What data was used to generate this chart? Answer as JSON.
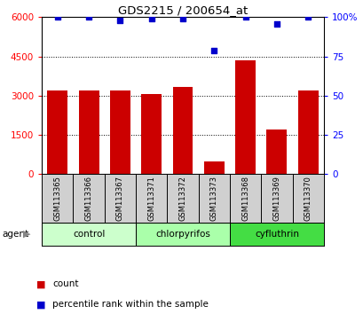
{
  "title": "GDS2215 / 200654_at",
  "samples": [
    "GSM113365",
    "GSM113366",
    "GSM113367",
    "GSM113371",
    "GSM113372",
    "GSM113373",
    "GSM113368",
    "GSM113369",
    "GSM113370"
  ],
  "counts": [
    3200,
    3200,
    3200,
    3050,
    3350,
    500,
    4350,
    1700,
    3200
  ],
  "percentiles": [
    100,
    100,
    98,
    99,
    99,
    79,
    100,
    96,
    100
  ],
  "groups": [
    {
      "label": "control",
      "indices": [
        0,
        1,
        2
      ],
      "color": "#ccffcc"
    },
    {
      "label": "chlorpyrifos",
      "indices": [
        3,
        4,
        5
      ],
      "color": "#aaffaa"
    },
    {
      "label": "cyfluthrin",
      "indices": [
        6,
        7,
        8
      ],
      "color": "#44dd44"
    }
  ],
  "bar_color": "#cc0000",
  "scatter_color": "#0000cc",
  "ylim_left": [
    0,
    6000
  ],
  "ylim_right": [
    0,
    100
  ],
  "yticks_left": [
    0,
    1500,
    3000,
    4500,
    6000
  ],
  "yticks_right": [
    0,
    25,
    50,
    75,
    100
  ],
  "ytick_labels_right": [
    "0",
    "25",
    "50",
    "75",
    "100%"
  ],
  "background_color": "#ffffff",
  "plot_bg_color": "#ffffff",
  "label_bg_color": "#d0d0d0",
  "agent_label": "agent",
  "legend_count_label": "count",
  "legend_percentile_label": "percentile rank within the sample"
}
